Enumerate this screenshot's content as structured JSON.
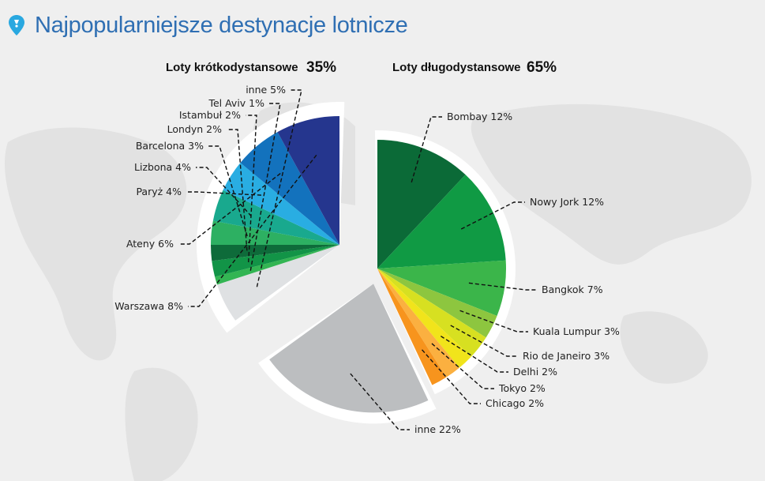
{
  "header": {
    "title": "Najpopularniejsze destynacje lotnicze",
    "icon": "location-pin-icon",
    "accent": "#2f6fb3"
  },
  "chart_data": {
    "type": "pie",
    "title": "Najpopularniejsze destynacje lotnicze",
    "groups": [
      {
        "name": "Loty krótkodystansowe",
        "total_label": "35%",
        "total": 35,
        "slices": [
          {
            "label": "inne 5%",
            "name": "inne",
            "value": 5,
            "color": "#dfe1e3"
          },
          {
            "label": "Tel Aviv 1%",
            "name": "Tel Aviv",
            "value": 1,
            "color": "#33b553"
          },
          {
            "label": "Istambuł 2%",
            "name": "Istambuł",
            "value": 2,
            "color": "#129447"
          },
          {
            "label": "Londyn 2%",
            "name": "Londyn",
            "value": 2,
            "color": "#0e6b3a"
          },
          {
            "label": "Barcelona 3%",
            "name": "Barcelona",
            "value": 3,
            "color": "#2db062"
          },
          {
            "label": "Lizbona 4%",
            "name": "Lizbona",
            "value": 4,
            "color": "#19a98e"
          },
          {
            "label": "Paryż 4%",
            "name": "Paryż",
            "value": 4,
            "color": "#29ade2"
          },
          {
            "label": "Ateny 6%",
            "name": "Ateny",
            "value": 6,
            "color": "#1372bd"
          },
          {
            "label": "Warszawa 8%",
            "name": "Warszawa",
            "value": 8,
            "color": "#25368e"
          }
        ]
      },
      {
        "name": "Loty długodystansowe",
        "total_label": "65%",
        "total": 65,
        "slices": [
          {
            "label": "Bombay 12%",
            "name": "Bombay",
            "value": 12,
            "color": "#0b6a37"
          },
          {
            "label": "Nowy Jork 12%",
            "name": "Nowy Jork",
            "value": 12,
            "color": "#109a44"
          },
          {
            "label": "Bangkok 7%",
            "name": "Bangkok",
            "value": 7,
            "color": "#3bb54a"
          },
          {
            "label": "Kuala Lumpur 3%",
            "name": "Kuala Lumpur",
            "value": 3,
            "color": "#8dc63f"
          },
          {
            "label": "Rio de Janeiro 3%",
            "name": "Rio de Janeiro",
            "value": 3,
            "color": "#d7e021"
          },
          {
            "label": "Delhi 2%",
            "name": "Delhi",
            "value": 2,
            "color": "#f1e41b"
          },
          {
            "label": "Tokyo 2%",
            "name": "Tokyo",
            "value": 2,
            "color": "#fbb040"
          },
          {
            "label": "Chicago 2%",
            "name": "Chicago",
            "value": 2,
            "color": "#f7941d"
          },
          {
            "label": "inne 22%",
            "name": "inne",
            "value": 22,
            "color": "#bcbec0"
          }
        ]
      }
    ]
  }
}
